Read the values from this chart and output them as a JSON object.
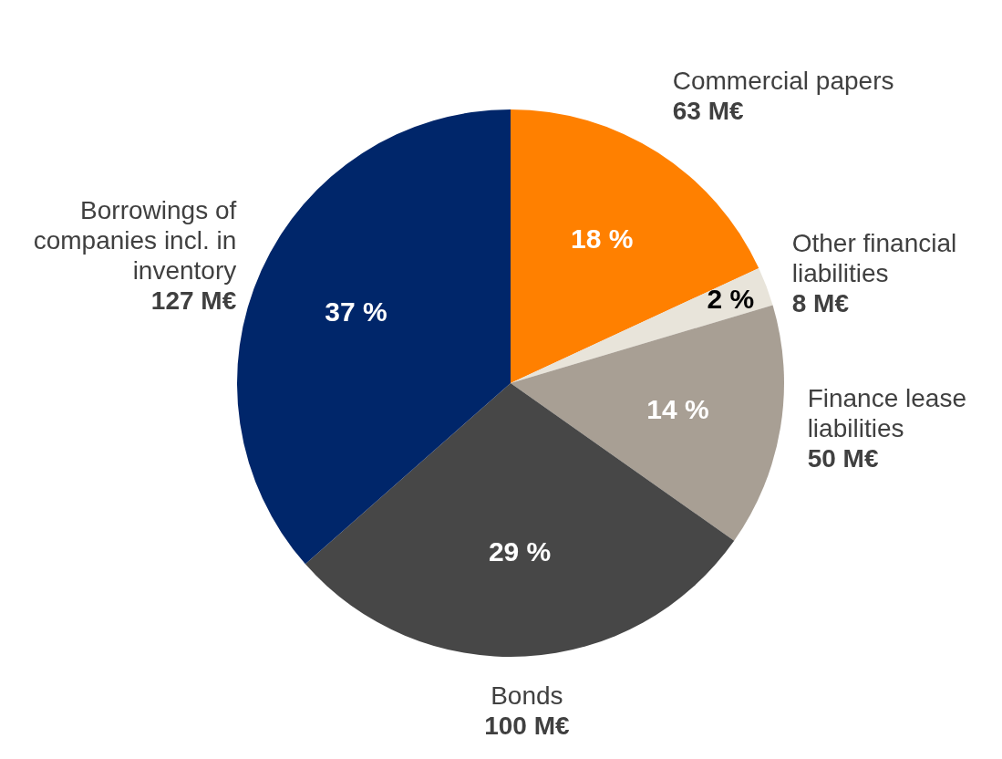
{
  "chart_data": {
    "type": "pie",
    "categories": [
      "Commercial papers",
      "Other financial liabilities",
      "Finance lease liabilities",
      "Bonds",
      "Borrowings of companies incl. in inventory"
    ],
    "values": [
      63,
      8,
      50,
      100,
      127
    ],
    "value_labels": [
      "63 M€",
      "8 M€",
      "50 M€",
      "100 M€",
      "127 M€"
    ],
    "colors": [
      "#ff8000",
      "#e8e4da",
      "#a89f94",
      "#474747",
      "#00266a"
    ],
    "annotations": [
      "18 %",
      "2 %",
      "14 %",
      "29 %",
      "37 %"
    ]
  }
}
